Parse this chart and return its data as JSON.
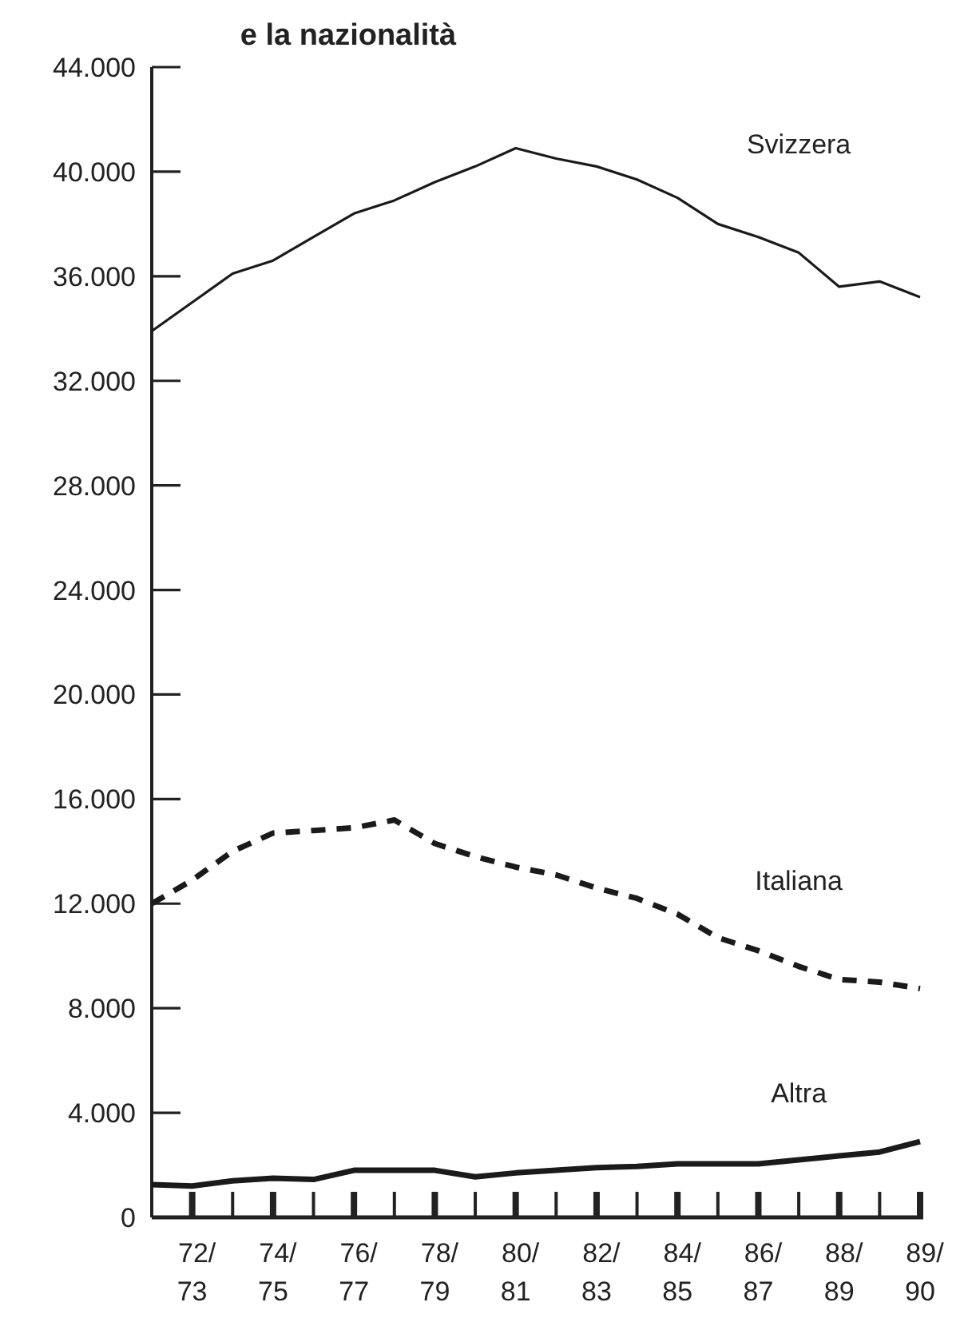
{
  "chart_data": {
    "type": "line",
    "title": "e la nazionalità",
    "categories": [
      null,
      "72/73",
      null,
      "74/75",
      null,
      "76/77",
      null,
      "78/79",
      null,
      "80/81",
      null,
      "82/83",
      null,
      "84/85",
      null,
      "86/87",
      null,
      "88/89",
      null,
      "89/90"
    ],
    "ylim": [
      0,
      44000
    ],
    "yticks": [
      {
        "value": 0,
        "label": "0"
      },
      {
        "value": 4000,
        "label": "4.000"
      },
      {
        "value": 8000,
        "label": "8.000"
      },
      {
        "value": 12000,
        "label": "12.000"
      },
      {
        "value": 16000,
        "label": "16.000"
      },
      {
        "value": 20000,
        "label": "20.000"
      },
      {
        "value": 24000,
        "label": "24.000"
      },
      {
        "value": 28000,
        "label": "28.000"
      },
      {
        "value": 32000,
        "label": "32.000"
      },
      {
        "value": 36000,
        "label": "36.000"
      },
      {
        "value": 40000,
        "label": "40.000"
      },
      {
        "value": 44000,
        "label": "44.000"
      }
    ],
    "grid": false,
    "legend": false,
    "marker": "none",
    "series": [
      {
        "name": "Svizzera",
        "color": "#1a1a1a",
        "line_style": "solid",
        "values": [
          33900,
          35000,
          36100,
          36600,
          37500,
          38400,
          38900,
          39600,
          40200,
          40900,
          40500,
          40200,
          39700,
          39000,
          38000,
          37500,
          36900,
          35600,
          35800,
          35200
        ]
      },
      {
        "name": "Italiana",
        "color": "#1a1a1a",
        "line_style": "dashed",
        "values": [
          12000,
          12900,
          14000,
          14700,
          14800,
          14900,
          15200,
          14300,
          13800,
          13400,
          13100,
          12600,
          12200,
          11600,
          10700,
          10200,
          9600,
          9100,
          9000,
          8750
        ]
      },
      {
        "name": "Altra",
        "color": "#1a1a1a",
        "line_style": "solid",
        "values": [
          1250,
          1200,
          1400,
          1500,
          1450,
          1800,
          1800,
          1800,
          1550,
          1700,
          1800,
          1900,
          1950,
          2050,
          2050,
          2050,
          2200,
          2350,
          2500,
          2900
        ]
      }
    ]
  }
}
